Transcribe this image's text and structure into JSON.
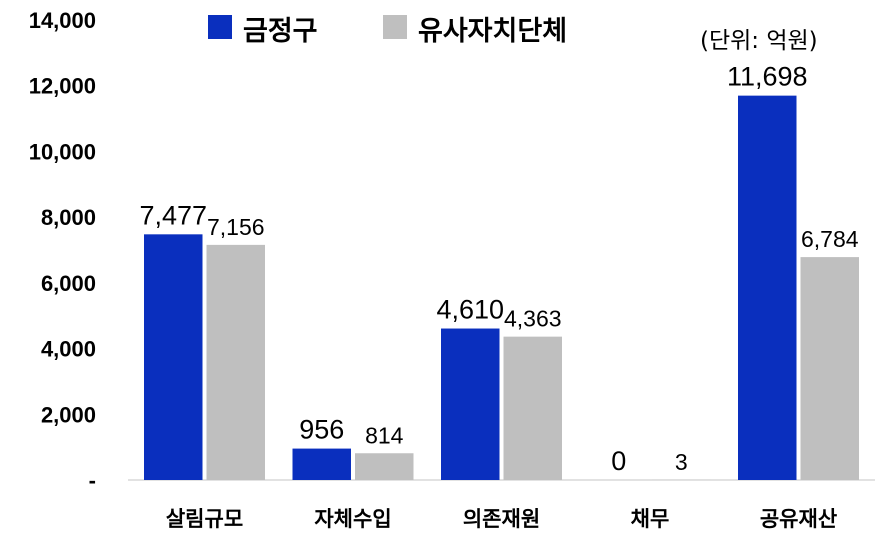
{
  "chart_data": {
    "type": "bar",
    "unit_note": "(단위: 억원)",
    "categories": [
      "살림규모",
      "자체수입",
      "의존재원",
      "채무",
      "공유재산"
    ],
    "series": [
      {
        "name": "금정구",
        "color": "#0a2fbe",
        "values": [
          7477,
          956,
          4610,
          0,
          11698
        ],
        "labels": [
          "7,477",
          "956",
          "4,610",
          "0",
          "11,698"
        ]
      },
      {
        "name": "유사자치단체",
        "color": "#bfbfbf",
        "values": [
          7156,
          814,
          4363,
          3,
          6784
        ],
        "labels": [
          "7,156",
          "814",
          "4,363",
          "3",
          "6,784"
        ]
      }
    ],
    "yticks": [
      0,
      2000,
      4000,
      6000,
      8000,
      10000,
      12000,
      14000
    ],
    "ytick_labels": [
      "-",
      "2,000",
      "4,000",
      "6,000",
      "8,000",
      "10,000",
      "12,000",
      "14,000"
    ],
    "ylim": [
      0,
      14000
    ],
    "grid": false,
    "legend_position": "top-center"
  }
}
